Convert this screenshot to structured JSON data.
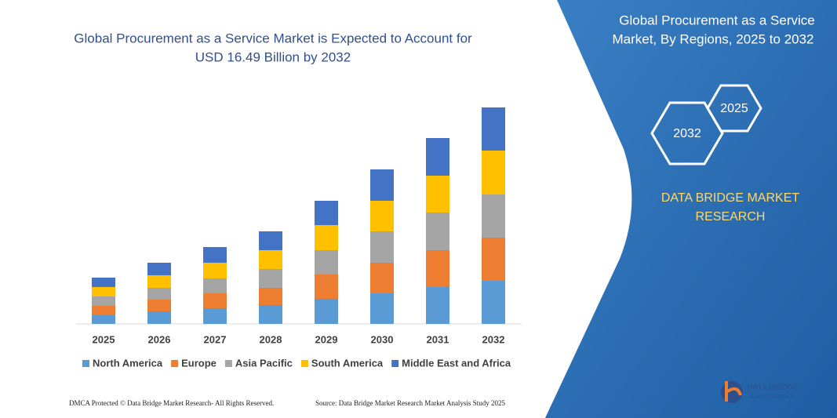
{
  "chart_data": {
    "type": "bar",
    "stacked": true,
    "title": [
      "Global Procurement as a Service Market is Expected to Account for",
      "USD 16.49 Billion by 2032"
    ],
    "categories": [
      "2025",
      "2026",
      "2027",
      "2028",
      "2029",
      "2030",
      "2031",
      "2032"
    ],
    "series": [
      {
        "name": "North America",
        "color": "#5b9bd5",
        "values": [
          11,
          16,
          20,
          24,
          32,
          39,
          47,
          55
        ]
      },
      {
        "name": "Europe",
        "color": "#ed7d31",
        "values": [
          12,
          15,
          19,
          22,
          31,
          39,
          47,
          55
        ]
      },
      {
        "name": "Asia Pacific",
        "color": "#a5a5a5",
        "values": [
          12,
          15,
          19,
          24,
          31,
          40,
          48,
          55
        ]
      },
      {
        "name": "South America",
        "color": "#ffc000",
        "values": [
          12,
          16,
          20,
          24,
          32,
          39,
          47,
          56
        ]
      },
      {
        "name": "Middle East and Africa",
        "color": "#4472c4",
        "values": [
          12,
          16,
          20,
          24,
          31,
          40,
          48,
          55
        ]
      }
    ]
  },
  "panel": {
    "title": [
      "Global Procurement as a Service",
      "Market, By Regions, 2025 to 2032"
    ],
    "hex_small": "2025",
    "hex_large": "2032",
    "brand": [
      "DATA BRIDGE MARKET",
      "RESEARCH"
    ]
  },
  "footer": {
    "left": "DMCA Protected © Data Bridge Market Research- All Rights Reserved.",
    "right": "Source: Data Bridge Market Research Market Analysis Study 2025"
  },
  "logo": {
    "name": "DATA BRIDGE",
    "tagline": "MARKET RESEARCH"
  }
}
